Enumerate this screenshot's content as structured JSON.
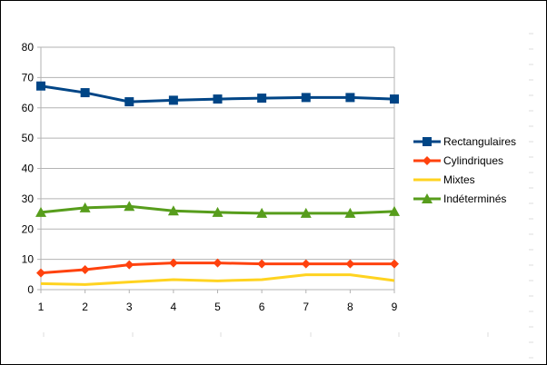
{
  "chart_data": {
    "type": "line",
    "title": "",
    "xlabel": "",
    "ylabel": "",
    "x": [
      1,
      2,
      3,
      4,
      5,
      6,
      7,
      8,
      9
    ],
    "x_tick_labels": [
      "1",
      "2",
      "3",
      "4",
      "5",
      "6",
      "7",
      "8",
      "9"
    ],
    "ylim": [
      0,
      80
    ],
    "y_ticks": [
      0,
      10,
      20,
      30,
      40,
      50,
      60,
      70,
      80
    ],
    "y_tick_labels": [
      "0",
      "10",
      "20",
      "30",
      "40",
      "50",
      "60",
      "70",
      "80"
    ],
    "grid": "horizontal",
    "legend_position": "right",
    "series": [
      {
        "name": "Rectangulaires",
        "color": "#004586",
        "marker": "square",
        "values": [
          67.2,
          65.0,
          62.0,
          62.5,
          62.9,
          63.2,
          63.4,
          63.4,
          62.9
        ]
      },
      {
        "name": "Cylindriques",
        "color": "#ff420e",
        "marker": "diamond",
        "values": [
          5.5,
          6.6,
          8.2,
          8.8,
          8.8,
          8.5,
          8.5,
          8.5,
          8.5
        ]
      },
      {
        "name": "Mixtes",
        "color": "#ffd320",
        "marker": "none",
        "values": [
          2.0,
          1.7,
          2.5,
          3.3,
          2.9,
          3.3,
          4.9,
          4.9,
          3.0
        ]
      },
      {
        "name": "Indéterminés",
        "color": "#579d1c",
        "marker": "triangle",
        "values": [
          25.5,
          27.0,
          27.5,
          26.0,
          25.5,
          25.2,
          25.2,
          25.2,
          25.8
        ]
      }
    ]
  }
}
